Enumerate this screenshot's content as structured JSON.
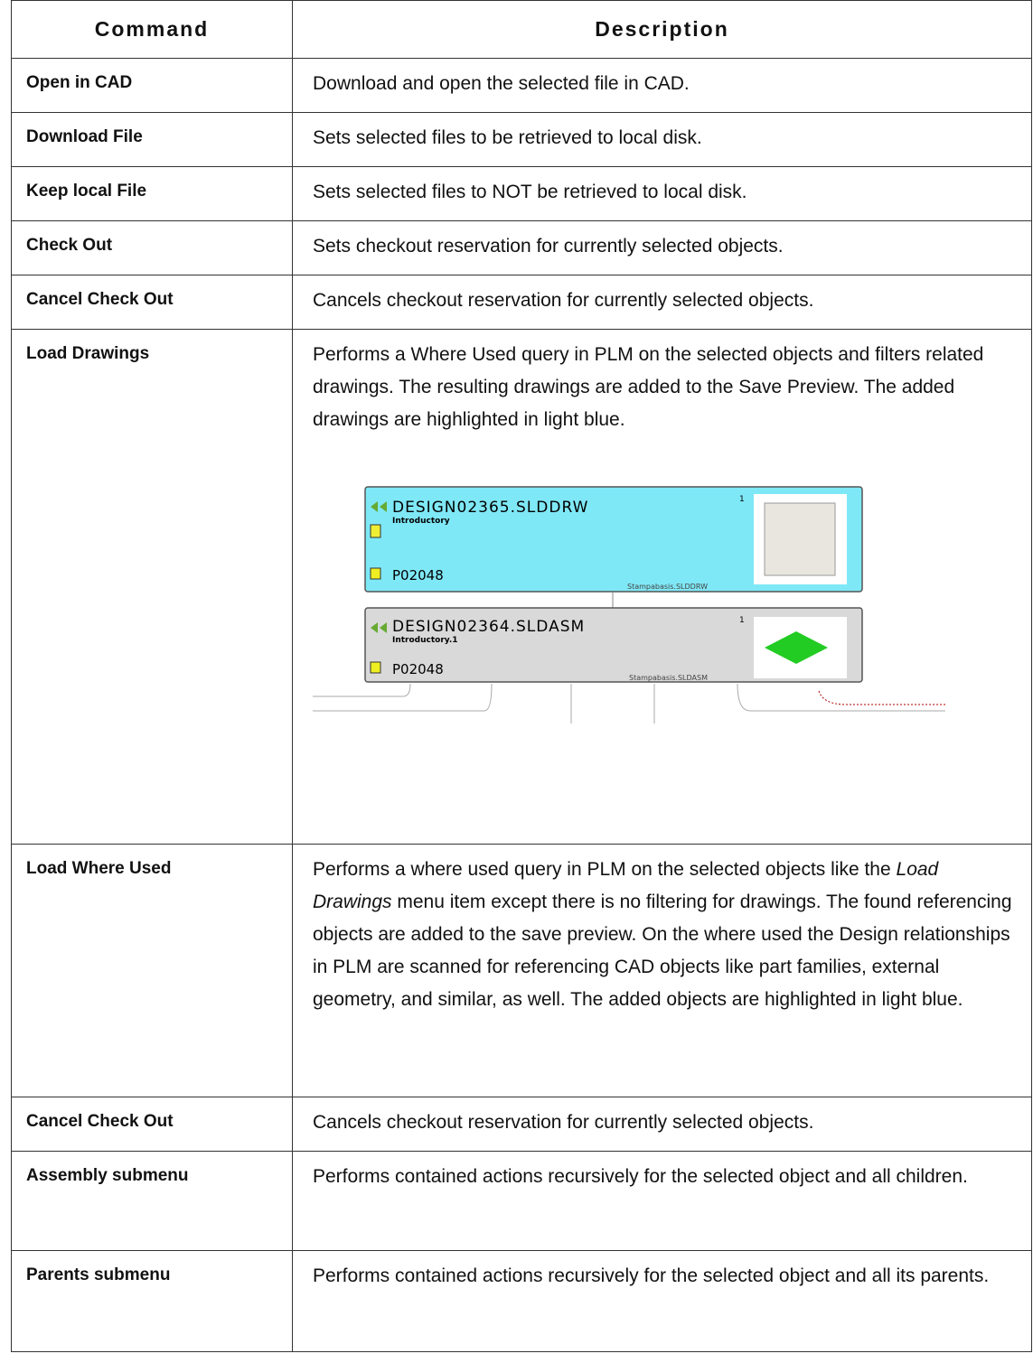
{
  "table": {
    "header": [
      "Command",
      "Description"
    ],
    "rows": [
      [
        "Open in CAD",
        "Download and open the selected file in CAD."
      ],
      [
        "Download File",
        "Sets selected files to be retrieved to local disk."
      ],
      [
        "Keep local File",
        "Sets selected files to NOT be retrieved to local disk."
      ],
      [
        "Check Out",
        "Sets checkout reservation for currently selected objects."
      ],
      [
        "Cancel Check Out",
        "Cancels checkout reservation for currently selected objects."
      ],
      [
        "Load Drawings",
        "Performs a Where Used query in PLM on the selected objects and filters related drawings. The resulting drawings are added to the Save Preview. The added drawings are highlighted in light blue."
      ],
      [
        "Load Where Used",
        {
          "before": "Performs a where used query in PLM on the selected objects like the ",
          "emphasis": "Load Drawings",
          "after": " menu item except there is no filtering for drawings. The found referencing objects are added to the save preview. On the where used the Design relationships in PLM are scanned for referencing CAD objects like part families, external geometry, and similar, as well. The added objects are highlighted in light blue."
        }
      ],
      [
        "Cancel Check Out",
        "Cancels checkout reservation for currently selected objects."
      ],
      [
        "Assembly submenu",
        "Performs contained actions recursively for the selected object and all children."
      ],
      [
        "Parents submenu",
        "Performs contained actions recursively for the selected object and all its parents."
      ]
    ]
  },
  "figure": {
    "nodes": [
      {
        "name": "DESIGN02365.SLDDRW",
        "subtitle": "Introductory",
        "part": "P02048",
        "count": "1",
        "file": "Stampabasis.SLDDRW"
      },
      {
        "name": "DESIGN02364.SLDASM",
        "subtitle": "Introductory.1",
        "part": "P02048",
        "count": "1",
        "file": "Stampabasis.SLDASM"
      }
    ]
  }
}
